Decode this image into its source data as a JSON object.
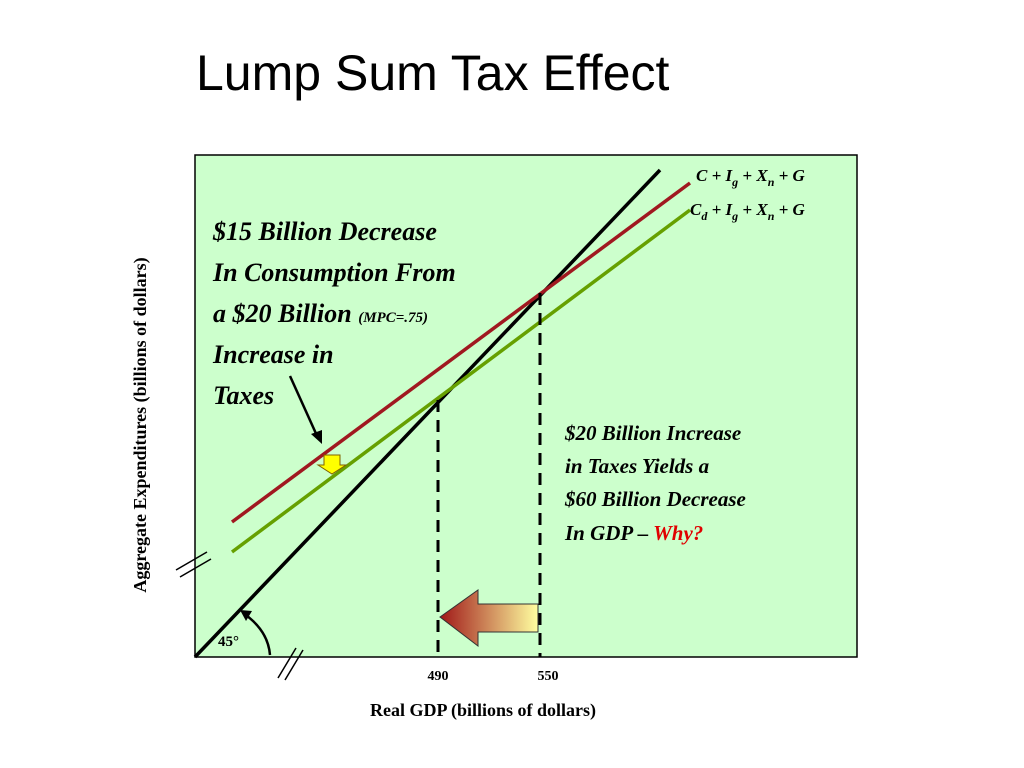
{
  "title": "Lump Sum Tax Effect",
  "y_axis_label": "Aggregate Expenditures (billions of dollars)",
  "x_axis_label": "Real GDP (billions of dollars)",
  "x_labels": [
    "490",
    "550"
  ],
  "angle_label": "45°",
  "lines": [
    {
      "label": [
        {
          "text": "C + I"
        },
        {
          "text": "g",
          "sub": true
        },
        {
          "text": " + X"
        },
        {
          "text": "n",
          "sub": true
        },
        {
          "text": " + G"
        }
      ]
    },
    {
      "label": [
        {
          "text": "C"
        },
        {
          "text": "d",
          "sub": true
        },
        {
          "text": " + I"
        },
        {
          "text": "g",
          "sub": true
        },
        {
          "text": " + X"
        },
        {
          "text": "n",
          "sub": true
        },
        {
          "text": " + G"
        }
      ]
    }
  ],
  "left_note": [
    "$15 Billion Decrease",
    "In Consumption From",
    "a $20 Billion",
    "(MPC=.75)",
    "Increase in",
    "Taxes"
  ],
  "right_note": [
    "$20 Billion Increase",
    "in Taxes Yields a",
    "$60 Billion Decrease",
    "In GDP –",
    "Why?"
  ]
}
